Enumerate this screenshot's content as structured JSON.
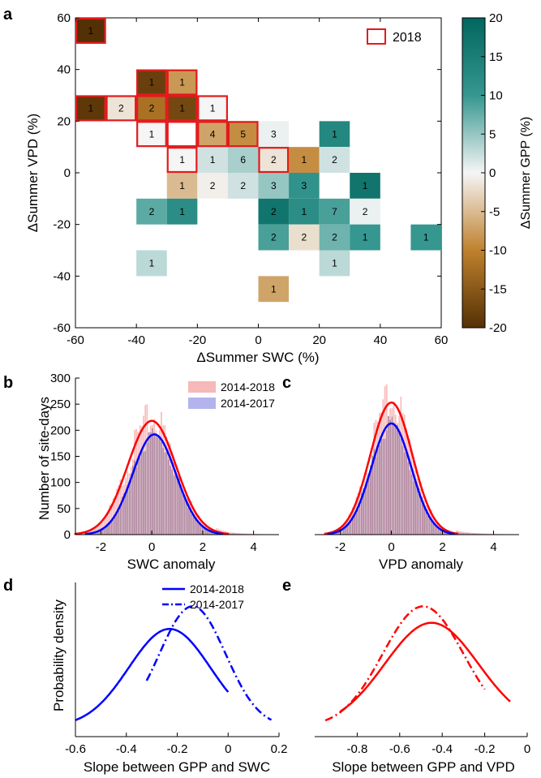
{
  "panels": {
    "a": "a",
    "b": "b",
    "c": "c",
    "d": "d",
    "e": "e"
  },
  "colors": {
    "highlight": "#e41a1c",
    "brown_dark": "#543005",
    "teal_dark": "#01665e",
    "neutral": "#f5f5f5",
    "red": "#ff0000",
    "blue": "#0000ff",
    "hist_red": "#f4a6a6",
    "hist_blue": "#a0a0e8"
  },
  "chart_data": [
    {
      "id": "a",
      "type": "heatmap",
      "xlabel": "ΔSummer SWC (%)",
      "ylabel": "ΔSummer VPD (%)",
      "xlim": [
        -60,
        60
      ],
      "ylim": [
        -60,
        60
      ],
      "xticks": [
        -60,
        -40,
        -20,
        0,
        20,
        40,
        60
      ],
      "yticks": [
        60,
        40,
        20,
        0,
        -20,
        -40,
        -60
      ],
      "colorbar": {
        "label": "ΔSummer GPP (%)",
        "range": [
          -20,
          20
        ],
        "ticks": [
          20,
          15,
          10,
          5,
          0,
          -5,
          -10,
          -15,
          -20
        ]
      },
      "legend": "2018",
      "cell_size": 10,
      "cells": [
        {
          "x": -55,
          "y": 55,
          "n": 1,
          "v": -20,
          "h": true
        },
        {
          "x": -35,
          "y": 35,
          "n": 1,
          "v": -18,
          "h": true
        },
        {
          "x": -25,
          "y": 35,
          "n": 1,
          "v": -8,
          "h": true
        },
        {
          "x": -55,
          "y": 25,
          "n": 1,
          "v": -19,
          "h": true
        },
        {
          "x": -45,
          "y": 25,
          "n": 2,
          "v": -1.5,
          "h": true
        },
        {
          "x": -35,
          "y": 25,
          "n": 2,
          "v": -12,
          "h": true
        },
        {
          "x": -25,
          "y": 25,
          "n": 1,
          "v": -17,
          "h": true
        },
        {
          "x": -15,
          "y": 25,
          "n": 1,
          "v": 0,
          "h": true
        },
        {
          "x": -35,
          "y": 15,
          "n": 1,
          "v": 0,
          "h": true
        },
        {
          "x": -25,
          "y": 15,
          "n": null,
          "v": null,
          "h": true
        },
        {
          "x": -15,
          "y": 15,
          "n": 4,
          "v": -7,
          "h": true
        },
        {
          "x": -5,
          "y": 15,
          "n": 5,
          "v": -9,
          "h": true
        },
        {
          "x": 5,
          "y": 15,
          "n": 3,
          "v": 0.5,
          "h": false
        },
        {
          "x": 25,
          "y": 15,
          "n": 1,
          "v": 13,
          "h": false
        },
        {
          "x": -25,
          "y": 5,
          "n": 1,
          "v": 0,
          "h": true
        },
        {
          "x": -15,
          "y": 5,
          "n": 1,
          "v": 2,
          "h": false
        },
        {
          "x": -5,
          "y": 5,
          "n": 6,
          "v": 4,
          "h": false
        },
        {
          "x": 5,
          "y": 5,
          "n": 2,
          "v": -1.5,
          "h": true
        },
        {
          "x": 15,
          "y": 5,
          "n": 1,
          "v": -9,
          "h": false
        },
        {
          "x": 25,
          "y": 5,
          "n": 2,
          "v": 2,
          "h": false
        },
        {
          "x": -25,
          "y": -5,
          "n": 1,
          "v": -5,
          "h": false
        },
        {
          "x": -15,
          "y": -5,
          "n": 2,
          "v": -0.5,
          "h": false
        },
        {
          "x": -5,
          "y": -5,
          "n": 2,
          "v": 2,
          "h": false
        },
        {
          "x": 5,
          "y": -5,
          "n": 3,
          "v": 5,
          "h": false
        },
        {
          "x": 15,
          "y": -5,
          "n": 3,
          "v": 11,
          "h": false
        },
        {
          "x": 35,
          "y": -5,
          "n": 1,
          "v": 17,
          "h": false
        },
        {
          "x": -35,
          "y": -15,
          "n": 2,
          "v": 8,
          "h": false
        },
        {
          "x": -25,
          "y": -15,
          "n": 1,
          "v": 12,
          "h": false
        },
        {
          "x": 5,
          "y": -15,
          "n": 2,
          "v": 17,
          "h": false
        },
        {
          "x": 15,
          "y": -15,
          "n": 1,
          "v": 12,
          "h": false
        },
        {
          "x": 25,
          "y": -15,
          "n": 7,
          "v": 9,
          "h": false
        },
        {
          "x": 35,
          "y": -15,
          "n": 2,
          "v": 0.5,
          "h": false
        },
        {
          "x": 5,
          "y": -25,
          "n": 2,
          "v": 9,
          "h": false
        },
        {
          "x": 15,
          "y": -25,
          "n": 2,
          "v": -2,
          "h": false
        },
        {
          "x": 25,
          "y": -25,
          "n": 2,
          "v": 7,
          "h": false
        },
        {
          "x": 35,
          "y": -25,
          "n": 1,
          "v": 10,
          "h": false
        },
        {
          "x": 55,
          "y": -25,
          "n": 1,
          "v": 10,
          "h": false
        },
        {
          "x": -35,
          "y": -35,
          "n": 1,
          "v": 3,
          "h": false
        },
        {
          "x": 25,
          "y": -35,
          "n": 1,
          "v": 3,
          "h": false
        },
        {
          "x": 5,
          "y": -45,
          "n": 1,
          "v": -7,
          "h": false
        }
      ]
    },
    {
      "id": "b",
      "type": "bar",
      "xlabel": "SWC anomaly",
      "ylabel": "Number of site-days",
      "xlim": [
        -3,
        5
      ],
      "ylim": [
        0,
        300
      ],
      "xticks": [
        -2,
        0,
        2,
        4
      ],
      "yticks": [
        0,
        50,
        100,
        150,
        200,
        250,
        300
      ],
      "series": [
        {
          "name": "2014-2018",
          "fit": {
            "mean": 0,
            "sd": 0.95,
            "peak": 218
          }
        },
        {
          "name": "2014-2017",
          "fit": {
            "mean": 0.1,
            "sd": 0.85,
            "peak": 192
          }
        }
      ]
    },
    {
      "id": "c",
      "type": "bar",
      "xlabel": "VPD anomaly",
      "xlim": [
        -3,
        5
      ],
      "ylim": [
        0,
        300
      ],
      "xticks": [
        -2,
        0,
        2,
        4
      ],
      "series": [
        {
          "name": "2014-2018",
          "fit": {
            "mean": 0,
            "sd": 0.82,
            "peak": 253
          }
        },
        {
          "name": "2014-2017",
          "fit": {
            "mean": 0,
            "sd": 0.78,
            "peak": 213
          }
        }
      ]
    },
    {
      "id": "d",
      "type": "line",
      "xlabel": "Slope between GPP and SWC",
      "ylabel": "Probability density",
      "xlim": [
        -0.6,
        0.2
      ],
      "xticks": [
        -0.6,
        -0.4,
        -0.2,
        0,
        0.2
      ],
      "series": [
        {
          "name": "2014-2018",
          "mean": -0.23,
          "sd": 0.16,
          "x_range": [
            -0.6,
            0.0
          ],
          "style": "solid"
        },
        {
          "name": "2014-2017",
          "mean": -0.14,
          "sd": 0.13,
          "x_range": [
            -0.32,
            0.17
          ],
          "style": "dashdot"
        }
      ]
    },
    {
      "id": "e",
      "type": "line",
      "xlabel": "Slope between GPP and VPD",
      "xlim": [
        -1,
        0
      ],
      "xticks": [
        -0.8,
        -0.6,
        -0.4,
        -0.2,
        0
      ],
      "series": [
        {
          "name": "2014-2018",
          "mean": -0.45,
          "sd": 0.22,
          "x_range": [
            -0.88,
            -0.08
          ],
          "style": "solid"
        },
        {
          "name": "2014-2017",
          "mean": -0.49,
          "sd": 0.19,
          "x_range": [
            -0.95,
            -0.2
          ],
          "style": "dashdot"
        }
      ]
    }
  ]
}
